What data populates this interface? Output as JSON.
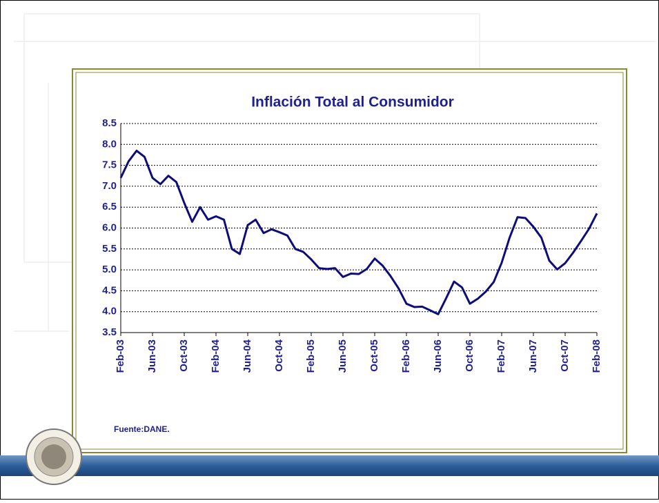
{
  "chart_data": {
    "type": "line",
    "title": "Inflación Total al Consumidor",
    "source": "Fuente:DANE.",
    "categories": [
      "Feb-03",
      null,
      null,
      null,
      "Jun-03",
      null,
      null,
      null,
      "Oct-03",
      null,
      null,
      null,
      "Feb-04",
      null,
      null,
      null,
      "Jun-04",
      null,
      null,
      null,
      "Oct-04",
      null,
      null,
      null,
      "Feb-05",
      null,
      null,
      null,
      "Jun-05",
      null,
      null,
      null,
      "Oct-05",
      null,
      null,
      null,
      "Feb-06",
      null,
      null,
      null,
      "Jun-06",
      null,
      null,
      null,
      "Oct-06",
      null,
      null,
      null,
      "Feb-07",
      null,
      null,
      null,
      "Jun-07",
      null,
      null,
      null,
      "Oct-07",
      null,
      null,
      null,
      "Feb-08"
    ],
    "series": [
      {
        "color": "#0c0c7a",
        "values": [
          7.2,
          7.6,
          7.85,
          7.7,
          7.2,
          7.05,
          7.25,
          7.1,
          6.6,
          6.15,
          6.5,
          6.2,
          6.28,
          6.2,
          5.5,
          5.38,
          6.07,
          6.2,
          5.88,
          5.97,
          5.9,
          5.82,
          5.5,
          5.43,
          5.25,
          5.04,
          5.02,
          5.04,
          4.83,
          4.91,
          4.9,
          5.02,
          5.27,
          5.1,
          4.85,
          4.56,
          4.19,
          4.11,
          4.12,
          4.03,
          3.94,
          4.32,
          4.72,
          4.58,
          4.19,
          4.31,
          4.48,
          4.71,
          5.17,
          5.77,
          6.26,
          6.24,
          6.03,
          5.77,
          5.22,
          5.01,
          5.16,
          5.41,
          5.69,
          5.98,
          6.35
        ]
      }
    ],
    "ylim": [
      3.5,
      8.5
    ],
    "yticks": [
      3.5,
      {
        "value": 4,
        "label": "4.0"
      },
      4.5,
      {
        "value": 5,
        "label": "5.0"
      },
      5.5,
      {
        "value": 6,
        "label": "6.0"
      },
      6.5,
      {
        "value": 7,
        "label": "7.0"
      },
      7.5,
      {
        "value": 8,
        "label": "8.0"
      },
      8.5
    ],
    "grid": true
  }
}
